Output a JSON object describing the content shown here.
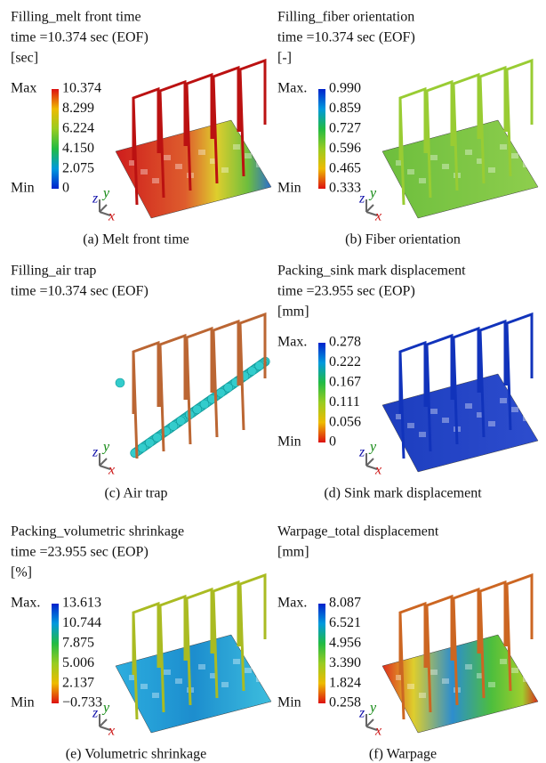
{
  "panels": [
    {
      "title_lines": [
        "Filling_melt front time",
        "time =10.374 sec (EOF)",
        "[sec]"
      ],
      "legend": {
        "max": "Max",
        "min": "Min",
        "labels": [
          "10.374",
          "8.299",
          "6.224",
          "4.150",
          "2.075",
          "0"
        ]
      },
      "axes": [
        "z",
        "y",
        "x"
      ],
      "caption": "(a) Melt front time"
    },
    {
      "title_lines": [
        "Filling_fiber orientation",
        "time =10.374 sec (EOF)",
        "[-]"
      ],
      "legend": {
        "max": "Max.",
        "min": "Min",
        "labels": [
          "0.990",
          "0.859",
          "0.727",
          "0.596",
          "0.465",
          "0.333"
        ]
      },
      "axes": [
        "z",
        "y",
        "x"
      ],
      "caption": "(b) Fiber orientation"
    },
    {
      "title_lines": [
        "Filling_air trap",
        "time =10.374 sec (EOF)"
      ],
      "axes": [
        "z",
        "y",
        "x"
      ],
      "caption": "(c) Air trap"
    },
    {
      "title_lines": [
        "Packing_sink mark displacement",
        "time =23.955 sec (EOP)",
        "[mm]"
      ],
      "legend": {
        "max": "Max.",
        "min": "Min",
        "labels": [
          "0.278",
          "0.222",
          "0.167",
          "0.111",
          "0.056",
          "0"
        ]
      },
      "axes": [
        "z",
        "y",
        "x"
      ],
      "caption": "(d) Sink mark displacement"
    },
    {
      "title_lines": [
        "Packing_volumetric shrinkage",
        "time =23.955 sec (EOP)",
        "[%]"
      ],
      "legend": {
        "max": "Max.",
        "min": "Min",
        "labels": [
          "13.613",
          "10.744",
          "7.875",
          "5.006",
          "2.137",
          "−0.733"
        ]
      },
      "axes": [
        "z",
        "y",
        "x"
      ],
      "caption": "(e) Volumetric shrinkage"
    },
    {
      "title_lines": [
        "Warpage_total displacement",
        "[mm]"
      ],
      "legend": {
        "max": "Max.",
        "min": "Min",
        "labels": [
          "8.087",
          "6.521",
          "4.956",
          "3.390",
          "1.824",
          "0.258"
        ]
      },
      "axes": [
        "z",
        "y",
        "x"
      ],
      "caption": "(f) Warpage"
    }
  ]
}
